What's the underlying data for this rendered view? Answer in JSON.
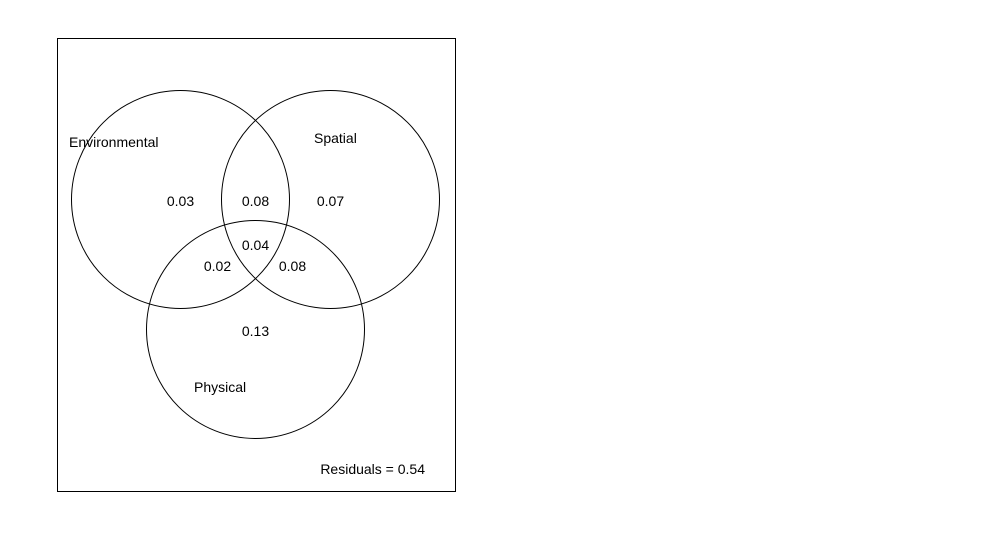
{
  "sets": {
    "environmental": "Environmental",
    "spatial": "Spatial",
    "physical": "Physical"
  },
  "regions": {
    "environmental_only": "0.03",
    "environmental_spatial": "0.08",
    "spatial_only": "0.07",
    "all_three": "0.04",
    "environmental_physical": "0.02",
    "spatial_physical": "0.08",
    "physical_only": "0.13"
  },
  "residuals": "Residuals = 0.54",
  "colors": {
    "stroke": "#000000",
    "background": "#ffffff"
  }
}
